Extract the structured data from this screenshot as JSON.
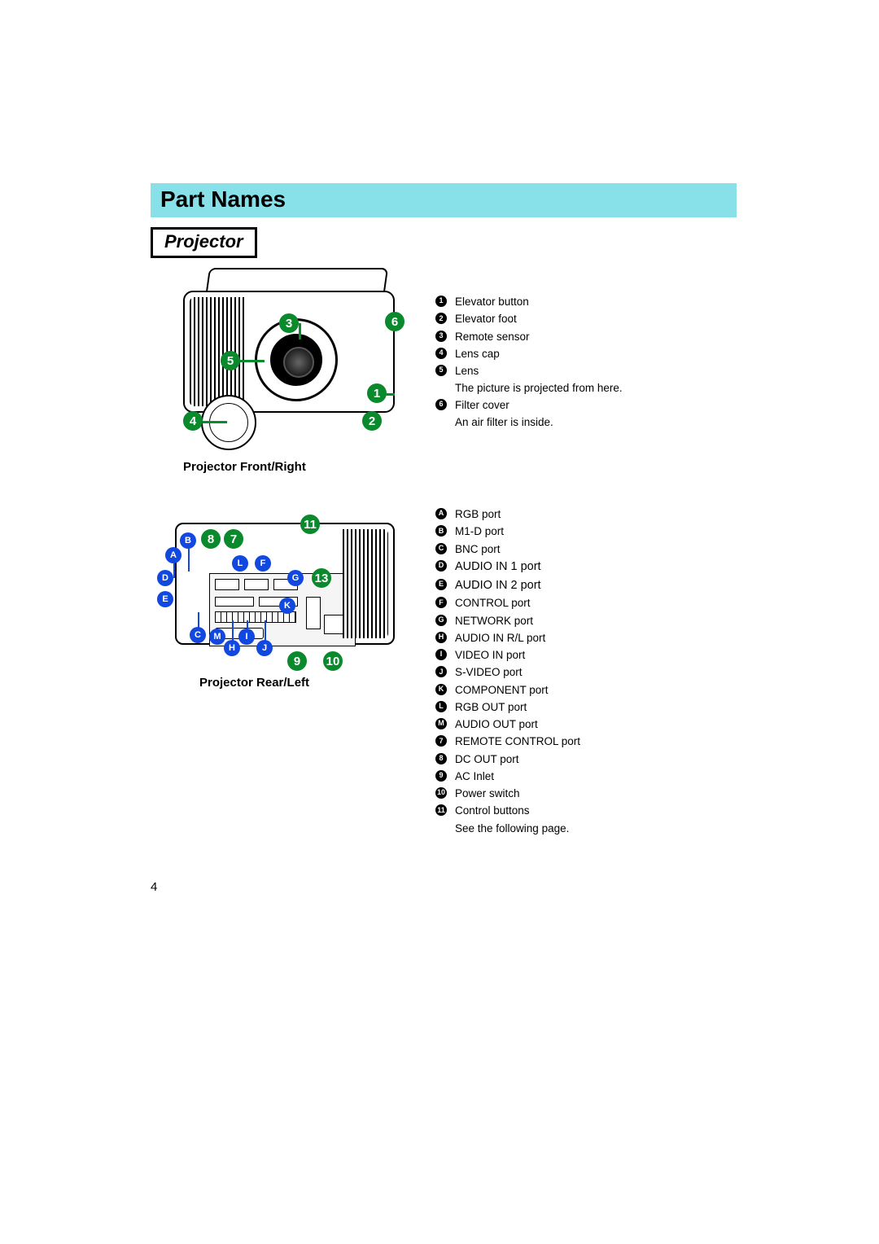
{
  "section_title": "Part Names",
  "sub_header": "Projector",
  "page_number": "4",
  "colors": {
    "title_bar_bg": "#88e0e8",
    "number_callout": "#0a8a2c",
    "letter_callout": "#1048e0",
    "black": "#000000",
    "white": "#ffffff"
  },
  "front_view": {
    "caption": "Projector Front/Right",
    "callouts": [
      "1",
      "2",
      "3",
      "4",
      "5",
      "6"
    ],
    "legend": [
      {
        "badge": "1",
        "text": "Elevator button"
      },
      {
        "badge": "2",
        "text": "Elevator foot"
      },
      {
        "badge": "3",
        "text": "Remote sensor"
      },
      {
        "badge": "4",
        "text": "Lens cap"
      },
      {
        "badge": "5",
        "text": "Lens",
        "sub": "The picture is projected from here."
      },
      {
        "badge": "6",
        "text": "Filter cover",
        "sub": "An air filter is inside."
      }
    ]
  },
  "rear_view": {
    "caption": "Projector Rear/Left",
    "letter_callouts": [
      "A",
      "B",
      "C",
      "D",
      "E",
      "F",
      "G",
      "H",
      "I",
      "J",
      "K",
      "L",
      "M"
    ],
    "number_callouts": [
      "7",
      "8",
      "9",
      "10",
      "11",
      "13"
    ],
    "legend": [
      {
        "badge": "A",
        "type": "letter",
        "text": "RGB port"
      },
      {
        "badge": "B",
        "type": "letter",
        "text": "M1-D port"
      },
      {
        "badge": "C",
        "type": "letter",
        "text": "BNC port"
      },
      {
        "badge": "D",
        "type": "letter",
        "text": "AUDIO IN 1 port"
      },
      {
        "badge": "E",
        "type": "letter",
        "text": "AUDIO IN 2 port"
      },
      {
        "badge": "F",
        "type": "letter",
        "text": "CONTROL port"
      },
      {
        "badge": "G",
        "type": "letter",
        "text": "NETWORK port"
      },
      {
        "badge": "H",
        "type": "letter",
        "text": "AUDIO IN R/L port"
      },
      {
        "badge": "I",
        "type": "letter",
        "text": "VIDEO IN port"
      },
      {
        "badge": "J",
        "type": "letter",
        "text": "S-VIDEO port"
      },
      {
        "badge": "K",
        "type": "letter",
        "text": "COMPONENT port"
      },
      {
        "badge": "L",
        "type": "letter",
        "text": "RGB OUT port"
      },
      {
        "badge": "M",
        "type": "letter",
        "text": "AUDIO OUT port"
      },
      {
        "badge": "7",
        "type": "number",
        "text": "REMOTE CONTROL port"
      },
      {
        "badge": "8",
        "type": "number",
        "text": "DC OUT port"
      },
      {
        "badge": "9",
        "type": "number",
        "text": "AC Inlet"
      },
      {
        "badge": "10",
        "type": "number",
        "text": "Power switch"
      },
      {
        "badge": "11",
        "type": "number",
        "text": "Control buttons",
        "sub": "See the following page."
      }
    ]
  }
}
